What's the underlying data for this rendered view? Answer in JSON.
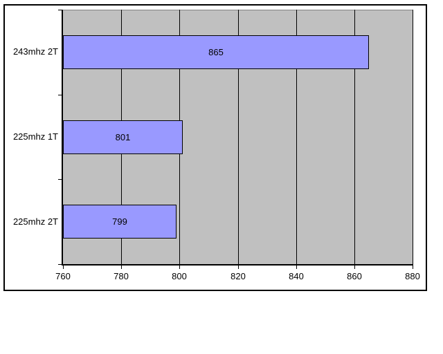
{
  "chart_data": {
    "type": "bar",
    "orientation": "horizontal",
    "title": "",
    "xlabel": "",
    "ylabel": "",
    "categories": [
      "243mhz 2T",
      "225mhz 1T",
      "225mhz 2T"
    ],
    "values": [
      865,
      801,
      799
    ],
    "data_labels": [
      "865",
      "801",
      "799"
    ],
    "x_axis": {
      "min": 760,
      "max": 880,
      "ticks": [
        760,
        780,
        800,
        820,
        840,
        860,
        880
      ],
      "tick_labels": [
        "760",
        "780",
        "800",
        "820",
        "840",
        "860",
        "880"
      ]
    },
    "legend": "none",
    "grid": "vertical",
    "colors": {
      "bar_fill": "#9999ff",
      "bar_border": "#000000",
      "plot_background": "#c0c0c0",
      "plot_border": "#808080",
      "gridline": "#000000",
      "axis_line": "#000000",
      "frame_border": "#000000",
      "label_text": "#000000",
      "page_background": "#ffffff"
    }
  }
}
